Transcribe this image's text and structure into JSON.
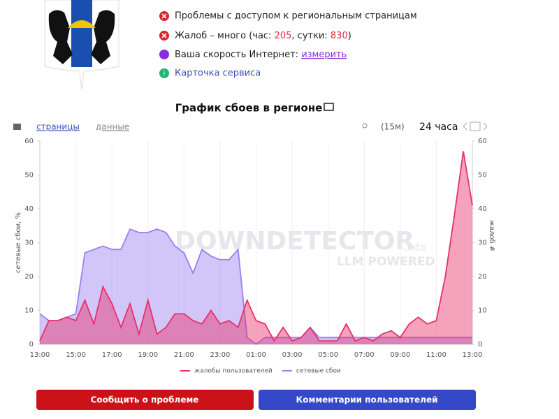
{
  "status": {
    "access": "Проблемы с доступом к региональным страницам",
    "complaints": {
      "prefix": "Жалоб – много (час: ",
      "hour": 205,
      "middle": ", сутки: ",
      "day": 830,
      "suffix": ")"
    },
    "speed": {
      "label": "Ваша скорость Интернет: ",
      "link": "измерить"
    },
    "card": "Карточка сервиса"
  },
  "toolbar": {
    "tabs": [
      "страницы",
      "данные"
    ],
    "interval": "(15м)",
    "period": "24 часа"
  },
  "watermark": {
    "brand": "DOWNDETECTOR",
    "suffix": ".info",
    "tagline": "LLM POWERED"
  },
  "chart_data": {
    "type": "area",
    "title": "График сбоев в регионе",
    "y_label": "сетевые сбои, %",
    "y2_label": "жалоб #",
    "categories": [
      "13:00",
      null,
      null,
      null,
      "15:00",
      null,
      null,
      null,
      "17:00",
      null,
      null,
      null,
      "19:00",
      null,
      null,
      null,
      "21:00",
      null,
      null,
      null,
      "23:00",
      null,
      null,
      null,
      "01:00",
      null,
      null,
      null,
      "03:00",
      null,
      null,
      null,
      "05:00",
      null,
      null,
      null,
      "07:00",
      null,
      null,
      null,
      "09:00",
      null,
      null,
      null,
      "11:00",
      null,
      null,
      null,
      "13:00"
    ],
    "series": [
      {
        "name": "сетевые сбои",
        "color": "#9b7ff0",
        "axis": "y",
        "values": [
          9,
          7,
          7,
          8,
          9,
          27,
          28,
          29,
          28,
          28,
          34,
          33,
          33,
          34,
          33,
          29,
          27,
          21,
          28,
          26,
          25,
          25,
          28,
          2,
          0,
          2,
          2,
          2,
          2,
          2,
          5,
          2,
          2,
          2,
          2,
          2,
          2,
          2,
          2,
          2,
          2,
          2,
          2,
          2,
          2,
          2,
          2,
          2,
          2
        ]
      },
      {
        "name": "жалобы пользователей",
        "color": "#e8306a",
        "axis": "y2",
        "values": [
          1,
          7,
          7,
          8,
          7,
          13,
          6,
          17,
          12,
          5,
          12,
          3,
          13,
          3,
          5,
          9,
          9,
          7,
          6,
          10,
          6,
          7,
          5,
          13,
          7,
          6,
          1,
          5,
          1,
          2,
          5,
          1,
          1,
          1,
          6,
          1,
          2,
          1,
          3,
          4,
          2,
          6,
          8,
          6,
          7,
          20,
          38,
          57,
          41
        ]
      }
    ],
    "ylim": [
      0,
      60
    ],
    "yticks": [
      0,
      10,
      20,
      30,
      40,
      50,
      60
    ],
    "y2lim": [
      0,
      60
    ],
    "y2ticks": [
      0,
      10,
      20,
      30,
      40,
      50,
      60
    ],
    "grid": true
  },
  "buttons": [
    "Сообщить о проблеме",
    "Комментарии пользователей"
  ]
}
